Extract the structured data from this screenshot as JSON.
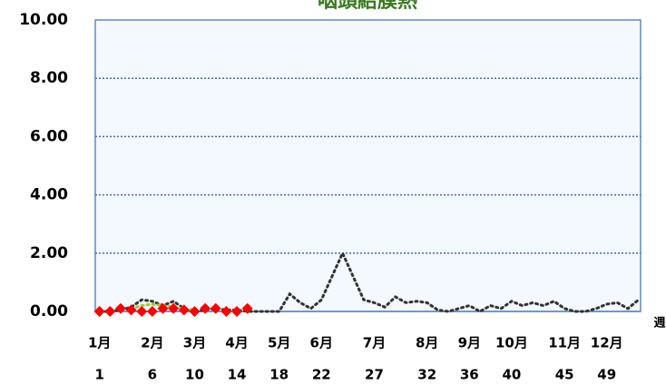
{
  "chart_data": {
    "type": "line",
    "title": "咽頭結膜熱",
    "x_label": "週",
    "x": [
      1,
      2,
      3,
      4,
      5,
      6,
      7,
      8,
      9,
      10,
      11,
      12,
      13,
      14,
      15,
      16,
      17,
      18,
      19,
      20,
      21,
      22,
      23,
      24,
      25,
      26,
      27,
      28,
      29,
      30,
      31,
      32,
      33,
      34,
      35,
      36,
      37,
      38,
      39,
      40,
      41,
      42,
      43,
      44,
      45,
      46,
      47,
      48,
      49,
      50,
      51,
      52
    ],
    "xlim": [
      0.6,
      52.2
    ],
    "xticks": [
      1,
      6,
      10,
      14,
      18,
      22,
      27,
      32,
      36,
      40,
      45,
      49
    ],
    "month_labels": [
      "1月",
      "2月",
      "3月",
      "4月",
      "5月",
      "6月",
      "7月",
      "8月",
      "9月",
      "10月",
      "11月",
      "12月"
    ],
    "ylim": [
      0,
      10
    ],
    "yticks": [
      {
        "value": 0,
        "label": "0.00"
      },
      {
        "value": 2,
        "label": "2.00"
      },
      {
        "value": 4,
        "label": "4.00"
      },
      {
        "value": 6,
        "label": "6.00"
      },
      {
        "value": 8,
        "label": "8.00"
      },
      {
        "value": 10,
        "label": "10.00"
      }
    ],
    "grid": true,
    "series": [
      {
        "color": "#333333",
        "style": "dotted",
        "values": [
          0,
          0,
          0.05,
          0.15,
          0.4,
          0.35,
          0.2,
          0.35,
          0.1,
          0,
          0.05,
          0.1,
          0.05,
          0.05,
          0,
          0,
          0,
          0,
          0.6,
          0.3,
          0.1,
          0.4,
          1.2,
          2.0,
          1.2,
          0.4,
          0.3,
          0.15,
          0.5,
          0.3,
          0.35,
          0.3,
          0.05,
          0,
          0.1,
          0.2,
          0,
          0.2,
          0.1,
          0.35,
          0.2,
          0.3,
          0.2,
          0.35,
          0.1,
          0,
          0,
          0.1,
          0.25,
          0.3,
          0.1,
          0.4
        ]
      },
      {
        "color": "#9acd32",
        "style": "dotted",
        "values": [
          null,
          null,
          null,
          0.1,
          0.2,
          0.25,
          0.2,
          0.15,
          0.1,
          0.05,
          null,
          null,
          null,
          null,
          null,
          null,
          null,
          null,
          null,
          null,
          null,
          null,
          null,
          null,
          null,
          null,
          null,
          null,
          null,
          null,
          null,
          null,
          null,
          null,
          null,
          null,
          null,
          null,
          null,
          null,
          null,
          null,
          null,
          null,
          null,
          null,
          null,
          null,
          null,
          null,
          null,
          null
        ]
      },
      {
        "color": "#ff0000",
        "style": "diamond",
        "values": [
          0,
          0,
          0.1,
          0.05,
          0,
          0,
          0.1,
          0.1,
          0.05,
          0,
          0.1,
          0.1,
          0,
          0,
          0.1,
          null,
          null,
          null,
          null,
          null,
          null,
          null,
          null,
          null,
          null,
          null,
          null,
          null,
          null,
          null,
          null,
          null,
          null,
          null,
          null,
          null,
          null,
          null,
          null,
          null,
          null,
          null,
          null,
          null,
          null,
          null,
          null,
          null,
          null,
          null,
          null,
          null
        ]
      }
    ]
  }
}
